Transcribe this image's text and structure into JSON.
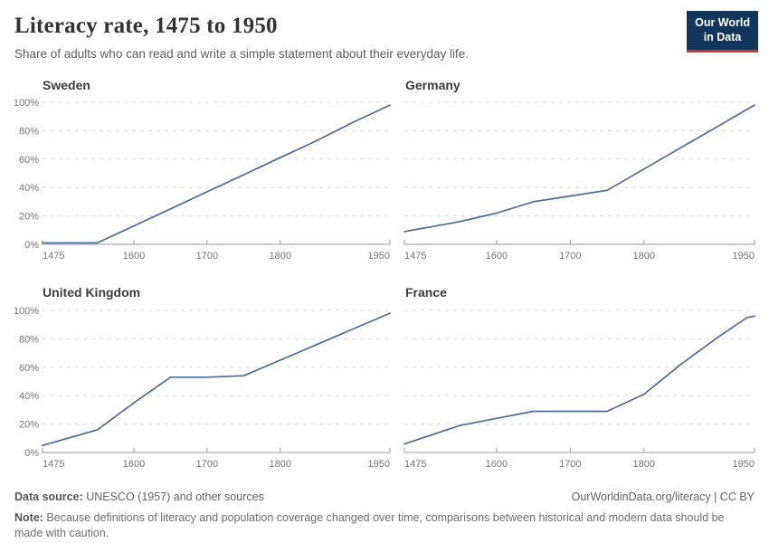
{
  "header": {
    "title": "Literacy rate, 1475 to 1950",
    "subtitle": "Share of adults who can read and write a simple statement about their everyday life.",
    "logo": {
      "line1": "Our World",
      "line2": "in Data",
      "bg_color": "#12355b",
      "bar_color": "#d0352b"
    }
  },
  "chart_data": {
    "type": "line",
    "title": "Literacy rate, 1475 to 1950",
    "xlabel": "",
    "ylabel": "",
    "xlim": [
      1475,
      1950
    ],
    "ylim": [
      0,
      100
    ],
    "x_ticks": [
      1475,
      1600,
      1700,
      1800,
      1950
    ],
    "y_ticks": [
      0,
      20,
      40,
      60,
      80,
      100
    ],
    "y_tick_suffix": "%",
    "grid": "horizontal dashed, y labels on left column only",
    "legend": "none (facet titles above each panel)",
    "line_color": "#4c6a9c",
    "grid_color": "#d9d9d9",
    "axis_color": "#9b9b9b",
    "tick_label_color": "#767676",
    "facets": [
      {
        "title": "Sweden",
        "x": [
          1475,
          1550,
          1600,
          1650,
          1700,
          1750,
          1800,
          1850,
          1900,
          1950
        ],
        "y": [
          1,
          1,
          13,
          25,
          37,
          49,
          61,
          73,
          86,
          98
        ]
      },
      {
        "title": "Germany",
        "x": [
          1475,
          1550,
          1600,
          1650,
          1700,
          1750,
          1800,
          1850,
          1900,
          1950
        ],
        "y": [
          9,
          16,
          22,
          30,
          34,
          38,
          53,
          68,
          83,
          98
        ]
      },
      {
        "title": "United Kingdom",
        "x": [
          1475,
          1550,
          1600,
          1650,
          1700,
          1750,
          1800,
          1850,
          1900,
          1950
        ],
        "y": [
          5,
          16,
          35,
          53,
          53,
          54,
          65,
          76,
          87,
          98
        ]
      },
      {
        "title": "France",
        "x": [
          1475,
          1550,
          1600,
          1650,
          1700,
          1750,
          1800,
          1850,
          1900,
          1920,
          1940,
          1950
        ],
        "y": [
          6,
          19,
          24,
          29,
          29,
          29,
          41,
          62,
          81,
          88,
          95,
          96
        ]
      }
    ]
  },
  "footer": {
    "source_label": "Data source:",
    "source_text": " UNESCO (1957) and other sources",
    "link_text": "OurWorldinData.org/literacy | CC BY",
    "note_label": "Note:",
    "note_text": " Because definitions of literacy and population coverage changed over time, comparisons between historical and modern data should be made with caution."
  }
}
